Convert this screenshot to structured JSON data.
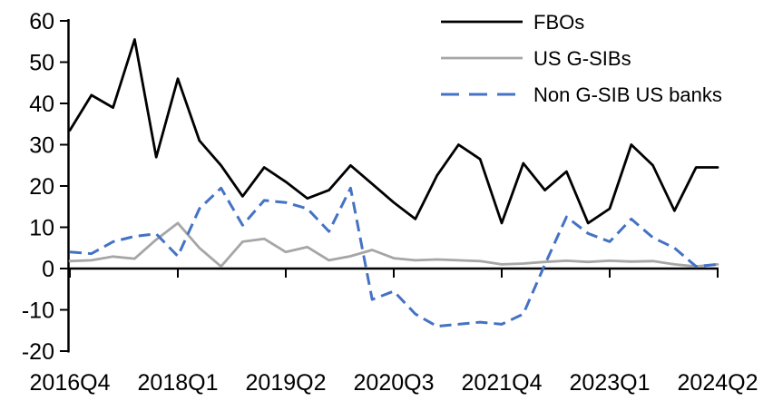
{
  "chart_data": {
    "type": "line",
    "title": "",
    "xlabel": "",
    "ylabel": "",
    "ylim": [
      -20,
      60
    ],
    "y_tick_step": 10,
    "y_tick_labels": [
      "60",
      "50",
      "40",
      "30",
      "20",
      "10",
      "0",
      "-10",
      "-20"
    ],
    "x_tick_labels": [
      "2016Q4",
      "2018Q1",
      "2019Q2",
      "2020Q3",
      "2021Q4",
      "2023Q1",
      "2024Q2"
    ],
    "x_tick_every": 5,
    "grid": false,
    "legend_position": "top-right",
    "background_color": "#ffffff",
    "axis_color": "#000000",
    "x_categories": [
      "2016Q4",
      "2017Q1",
      "2017Q2",
      "2017Q3",
      "2017Q4",
      "2018Q1",
      "2018Q2",
      "2018Q3",
      "2018Q4",
      "2019Q1",
      "2019Q2",
      "2019Q3",
      "2019Q4",
      "2020Q1",
      "2020Q2",
      "2020Q3",
      "2020Q4",
      "2021Q1",
      "2021Q2",
      "2021Q3",
      "2021Q4",
      "2022Q1",
      "2022Q2",
      "2022Q3",
      "2022Q4",
      "2023Q1",
      "2023Q2",
      "2023Q3",
      "2023Q4",
      "2024Q1",
      "2024Q2"
    ],
    "series": [
      {
        "name": "FBOs",
        "color": "#000000",
        "style": "solid",
        "values": [
          33.5,
          42,
          39,
          55.5,
          27,
          46,
          31,
          25,
          17.5,
          24.5,
          21,
          17,
          19,
          25,
          20.5,
          16,
          12,
          22.5,
          30,
          26.5,
          11,
          25.5,
          19,
          23.5,
          11,
          14.5,
          30,
          25,
          14,
          24.5,
          24.5
        ]
      },
      {
        "name": "US G-SIBs",
        "color": "#A6A6A6",
        "style": "solid",
        "values": [
          1.8,
          2,
          2.9,
          2.4,
          7,
          11,
          5,
          0.5,
          6.5,
          7.2,
          4,
          5.2,
          2,
          3,
          4.5,
          2.5,
          2,
          2.2,
          2,
          1.8,
          1,
          1.2,
          1.6,
          1.9,
          1.6,
          1.9,
          1.7,
          1.8,
          1,
          0.5,
          1
        ]
      },
      {
        "name": "Non G-SIB US banks",
        "color": "#4472C4",
        "style": "dashed",
        "values": [
          4,
          3.6,
          6.5,
          7.8,
          8.4,
          3,
          14.5,
          19.5,
          10.5,
          16.5,
          16,
          14.5,
          9,
          19.5,
          -7.5,
          -5.5,
          -11,
          -14,
          -13.5,
          -13,
          -13.5,
          -11,
          1,
          12.5,
          8.5,
          6.5,
          12,
          7.5,
          5,
          0.5,
          1
        ]
      }
    ]
  }
}
